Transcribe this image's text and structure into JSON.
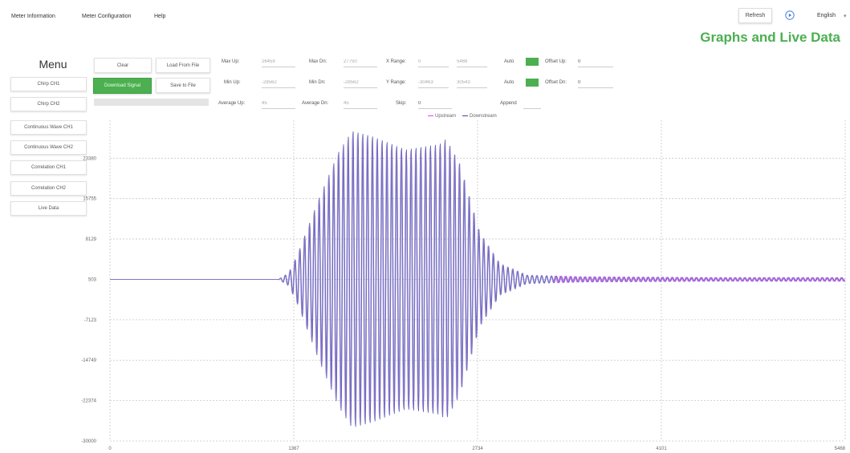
{
  "menubar": {
    "items": [
      "Meter Information",
      "Meter Configuration",
      "Help"
    ],
    "refresh_label": "Refresh",
    "language": "English",
    "language_caret": "▾"
  },
  "page_title": "Graphs and Live Data",
  "sidebar": {
    "title": "Menu",
    "items": [
      "Chirp CH1",
      "Chirp CH2",
      "Continuous Wave CH1",
      "Continuous Wave CH2",
      "Correlation CH1",
      "Correlation CH2",
      "Live Data"
    ]
  },
  "controls": {
    "clear_label": "Clear",
    "load_label": "Load From File",
    "download_label": "Download Signal",
    "save_label": "Save to File",
    "progress": 0,
    "max_up_label": "Max Up:",
    "max_up": "26459",
    "min_up_label": "Min Up:",
    "min_up": "-28562",
    "avg_up_label": "Average Up:",
    "avg_up": "45",
    "max_dn_label": "Max Dn:",
    "max_dn": "27750",
    "min_dn_label": "Min Dn:",
    "min_dn": "-28562",
    "avg_dn_label": "Average Dn:",
    "avg_dn": "45",
    "x_range_label": "X Range:",
    "x_min": "0",
    "x_max": "5468",
    "y_range_label": "Y Range:",
    "y_min": "-30463",
    "y_max": "30543",
    "skip_label": "Skip:",
    "skip": "0",
    "auto_label": "Auto",
    "auto_x_checked": true,
    "auto_y_checked": true,
    "offset_up_label": "Offset Up:",
    "offset_up": "0",
    "offset_dn_label": "Offset Dn:",
    "offset_dn": "0",
    "append_label": "Append"
  },
  "colors": {
    "accent": "#4caf50",
    "upstream": "#e040fb",
    "downstream": "#3949ab",
    "signal": "#9575cd"
  },
  "chart_data": {
    "type": "line",
    "series": [
      {
        "name": "Upstream",
        "color": "#e040fb"
      },
      {
        "name": "Downstream",
        "color": "#3949ab"
      }
    ],
    "xlim": [
      0,
      5468
    ],
    "ylim": [
      -30000,
      30543
    ],
    "x_ticks": [
      "0",
      "1367",
      "2734",
      "4101",
      "5468"
    ],
    "x_tick_values": [
      0,
      1367,
      2734,
      4101,
      5468
    ],
    "y_ticks": [
      "23380",
      "15755",
      "8129",
      "503",
      "-7123",
      "-14749",
      "-22374",
      "-30000"
    ],
    "y_tick_values": [
      23380,
      15755,
      8129,
      503,
      -7123,
      -14749,
      -22374,
      -30000
    ],
    "baseline": 503,
    "burst_envelope": {
      "x": [
        0,
        1250,
        1330,
        1400,
        1550,
        1700,
        1800,
        1950,
        2200,
        2450,
        2500,
        2600,
        2750,
        2900,
        3100,
        3500,
        4500,
        5468
      ],
      "amplitude": [
        0,
        0,
        1200,
        5000,
        15000,
        24000,
        28000,
        27000,
        24500,
        25500,
        26500,
        22000,
        9000,
        3000,
        800,
        500,
        350,
        350
      ]
    },
    "grid": true,
    "legend": "top-center"
  }
}
